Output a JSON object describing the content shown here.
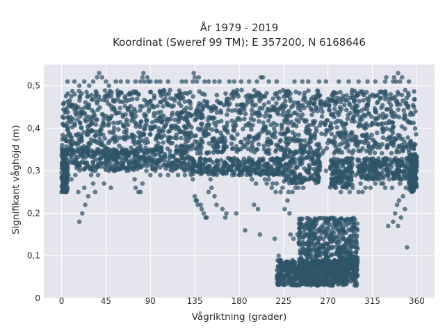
{
  "chart_data": {
    "type": "scatter",
    "title": "År 1979 - 2019",
    "subtitle": "Koordinat (Sweref 99 TM): E 357200, N 6168646",
    "xlabel": "Vågriktning (grader)",
    "ylabel": "Signifikant våghöjd (m)",
    "xlim": [
      -18,
      378
    ],
    "ylim": [
      0,
      0.55
    ],
    "x_ticks": [
      0,
      45,
      90,
      135,
      180,
      225,
      270,
      315,
      360
    ],
    "x_tick_labels": [
      "0",
      "45",
      "90",
      "135",
      "180",
      "225",
      "270",
      "315",
      "360"
    ],
    "y_ticks": [
      0,
      0.1,
      0.2,
      0.3,
      0.4,
      0.5
    ],
    "y_tick_labels": [
      "0",
      "0,1",
      "0,2",
      "0,3",
      "0,4",
      "0,5"
    ],
    "grid": true,
    "background": "#e5e5ee",
    "marker_color": "#2f5468",
    "points": [
      [
        0,
        0.25
      ],
      [
        1,
        0.26
      ],
      [
        3,
        0.27
      ],
      [
        5,
        0.25
      ],
      [
        7,
        0.29
      ],
      [
        10,
        0.28
      ],
      [
        14,
        0.29
      ],
      [
        17,
        0.25
      ],
      [
        18,
        0.18
      ],
      [
        21,
        0.2
      ],
      [
        23,
        0.26
      ],
      [
        24,
        0.22
      ],
      [
        27,
        0.24
      ],
      [
        30,
        0.29
      ],
      [
        32,
        0.27
      ],
      [
        34,
        0.25
      ],
      [
        37,
        0.29
      ],
      [
        40,
        0.31
      ],
      [
        43,
        0.27
      ],
      [
        48,
        0.3
      ],
      [
        50,
        0.26
      ],
      [
        53,
        0.3
      ],
      [
        56,
        0.32
      ],
      [
        61,
        0.31
      ],
      [
        66,
        0.3
      ],
      [
        70,
        0.31
      ],
      [
        74,
        0.28
      ],
      [
        75,
        0.26
      ],
      [
        78,
        0.25
      ],
      [
        80,
        0.25
      ],
      [
        82,
        0.27
      ],
      [
        86,
        0.3
      ],
      [
        90,
        0.29
      ],
      [
        95,
        0.3
      ],
      [
        100,
        0.29
      ],
      [
        108,
        0.29
      ],
      [
        118,
        0.29
      ],
      [
        125,
        0.29
      ],
      [
        130,
        0.3
      ],
      [
        133,
        0.28
      ],
      [
        135,
        0.24
      ],
      [
        136,
        0.23
      ],
      [
        137,
        0.23
      ],
      [
        138,
        0.22
      ],
      [
        141,
        0.22
      ],
      [
        142,
        0.21
      ],
      [
        144,
        0.2
      ],
      [
        146,
        0.19
      ],
      [
        147,
        0.19
      ],
      [
        149,
        0.25
      ],
      [
        151,
        0.28
      ],
      [
        152,
        0.26
      ],
      [
        155,
        0.24
      ],
      [
        157,
        0.22
      ],
      [
        161,
        0.3
      ],
      [
        163,
        0.21
      ],
      [
        166,
        0.19
      ],
      [
        167,
        0.2
      ],
      [
        173,
        0.29
      ],
      [
        177,
        0.2
      ],
      [
        180,
        0.29
      ],
      [
        186,
        0.16
      ],
      [
        190,
        0.3
      ],
      [
        193,
        0.28
      ],
      [
        195,
        0.22
      ],
      [
        197,
        0.27
      ],
      [
        199,
        0.21
      ],
      [
        201,
        0.15
      ],
      [
        205,
        0.3
      ],
      [
        206,
        0.28
      ],
      [
        208,
        0.27
      ],
      [
        210,
        0.28
      ],
      [
        213,
        0.26
      ],
      [
        214,
        0.27
      ],
      [
        216,
        0.14
      ],
      [
        217,
        0.25
      ],
      [
        218,
        0.27
      ],
      [
        220,
        0.1
      ],
      [
        222,
        0.25
      ],
      [
        224,
        0.26
      ],
      [
        226,
        0.21
      ],
      [
        227,
        0.28
      ],
      [
        229,
        0.23
      ],
      [
        230,
        0.25
      ],
      [
        231,
        0.2
      ],
      [
        232,
        0.15
      ],
      [
        234,
        0.25
      ],
      [
        235,
        0.14
      ],
      [
        237,
        0.26
      ],
      [
        239,
        0.15
      ],
      [
        240,
        0.26
      ],
      [
        243,
        0.28
      ],
      [
        245,
        0.26
      ],
      [
        248,
        0.3
      ],
      [
        256,
        0.29
      ],
      [
        262,
        0.31
      ],
      [
        268,
        0.3
      ],
      [
        275,
        0.27
      ],
      [
        278,
        0.26
      ],
      [
        280,
        0.28
      ],
      [
        283,
        0.25
      ],
      [
        286,
        0.27
      ],
      [
        289,
        0.26
      ],
      [
        292,
        0.25
      ],
      [
        295,
        0.26
      ],
      [
        298,
        0.29
      ],
      [
        301,
        0.25
      ],
      [
        303,
        0.27
      ],
      [
        305,
        0.25
      ],
      [
        308,
        0.26
      ],
      [
        311,
        0.28
      ],
      [
        313,
        0.26
      ],
      [
        316,
        0.28
      ],
      [
        318,
        0.27
      ],
      [
        319,
        0.29
      ],
      [
        322,
        0.28
      ],
      [
        324,
        0.27
      ],
      [
        326,
        0.27
      ],
      [
        328,
        0.26
      ],
      [
        331,
        0.17
      ],
      [
        332,
        0.28
      ],
      [
        335,
        0.26
      ],
      [
        336,
        0.18
      ],
      [
        338,
        0.2
      ],
      [
        340,
        0.22
      ],
      [
        341,
        0.17
      ],
      [
        342,
        0.23
      ],
      [
        343,
        0.27
      ],
      [
        344,
        0.19
      ],
      [
        345,
        0.28
      ],
      [
        346,
        0.24
      ],
      [
        348,
        0.21
      ],
      [
        349,
        0.26
      ],
      [
        350,
        0.12
      ],
      [
        353,
        0.26
      ],
      [
        355,
        0.25
      ],
      [
        357,
        0.26
      ],
      [
        359,
        0.27
      ],
      [
        336,
        0.51
      ],
      [
        337,
        0.52
      ],
      [
        339,
        0.51
      ],
      [
        341,
        0.53
      ],
      [
        343,
        0.51
      ],
      [
        328,
        0.51
      ],
      [
        329,
        0.52
      ],
      [
        345,
        0.52
      ],
      [
        352,
        0.51
      ],
      [
        6,
        0.51
      ],
      [
        13,
        0.51
      ],
      [
        18,
        0.5
      ],
      [
        23,
        0.51
      ],
      [
        28,
        0.5
      ],
      [
        32,
        0.51
      ],
      [
        36,
        0.52
      ],
      [
        38,
        0.53
      ],
      [
        41,
        0.52
      ],
      [
        45,
        0.51
      ],
      [
        48,
        0.5
      ],
      [
        55,
        0.51
      ],
      [
        60,
        0.51
      ],
      [
        67,
        0.51
      ],
      [
        75,
        0.51
      ],
      [
        80,
        0.51
      ],
      [
        82,
        0.52
      ],
      [
        83,
        0.53
      ],
      [
        84,
        0.51
      ],
      [
        87,
        0.52
      ],
      [
        88,
        0.51
      ],
      [
        90,
        0.51
      ],
      [
        96,
        0.51
      ],
      [
        100,
        0.51
      ],
      [
        108,
        0.51
      ],
      [
        122,
        0.51
      ],
      [
        126,
        0.51
      ],
      [
        133,
        0.51
      ],
      [
        134,
        0.53
      ],
      [
        135,
        0.52
      ],
      [
        137,
        0.51
      ],
      [
        139,
        0.52
      ],
      [
        145,
        0.51
      ],
      [
        149,
        0.51
      ],
      [
        155,
        0.51
      ],
      [
        160,
        0.51
      ],
      [
        170,
        0.51
      ],
      [
        175,
        0.51
      ],
      [
        182,
        0.51
      ],
      [
        190,
        0.51
      ],
      [
        198,
        0.51
      ],
      [
        202,
        0.52
      ],
      [
        204,
        0.52
      ],
      [
        210,
        0.51
      ],
      [
        218,
        0.51
      ],
      [
        236,
        0.51
      ],
      [
        244,
        0.51
      ],
      [
        250,
        0.51
      ],
      [
        261,
        0.51
      ],
      [
        268,
        0.51
      ],
      [
        281,
        0.51
      ],
      [
        291,
        0.51
      ],
      [
        301,
        0.51
      ],
      [
        310,
        0.51
      ],
      [
        318,
        0.51
      ]
    ]
  }
}
